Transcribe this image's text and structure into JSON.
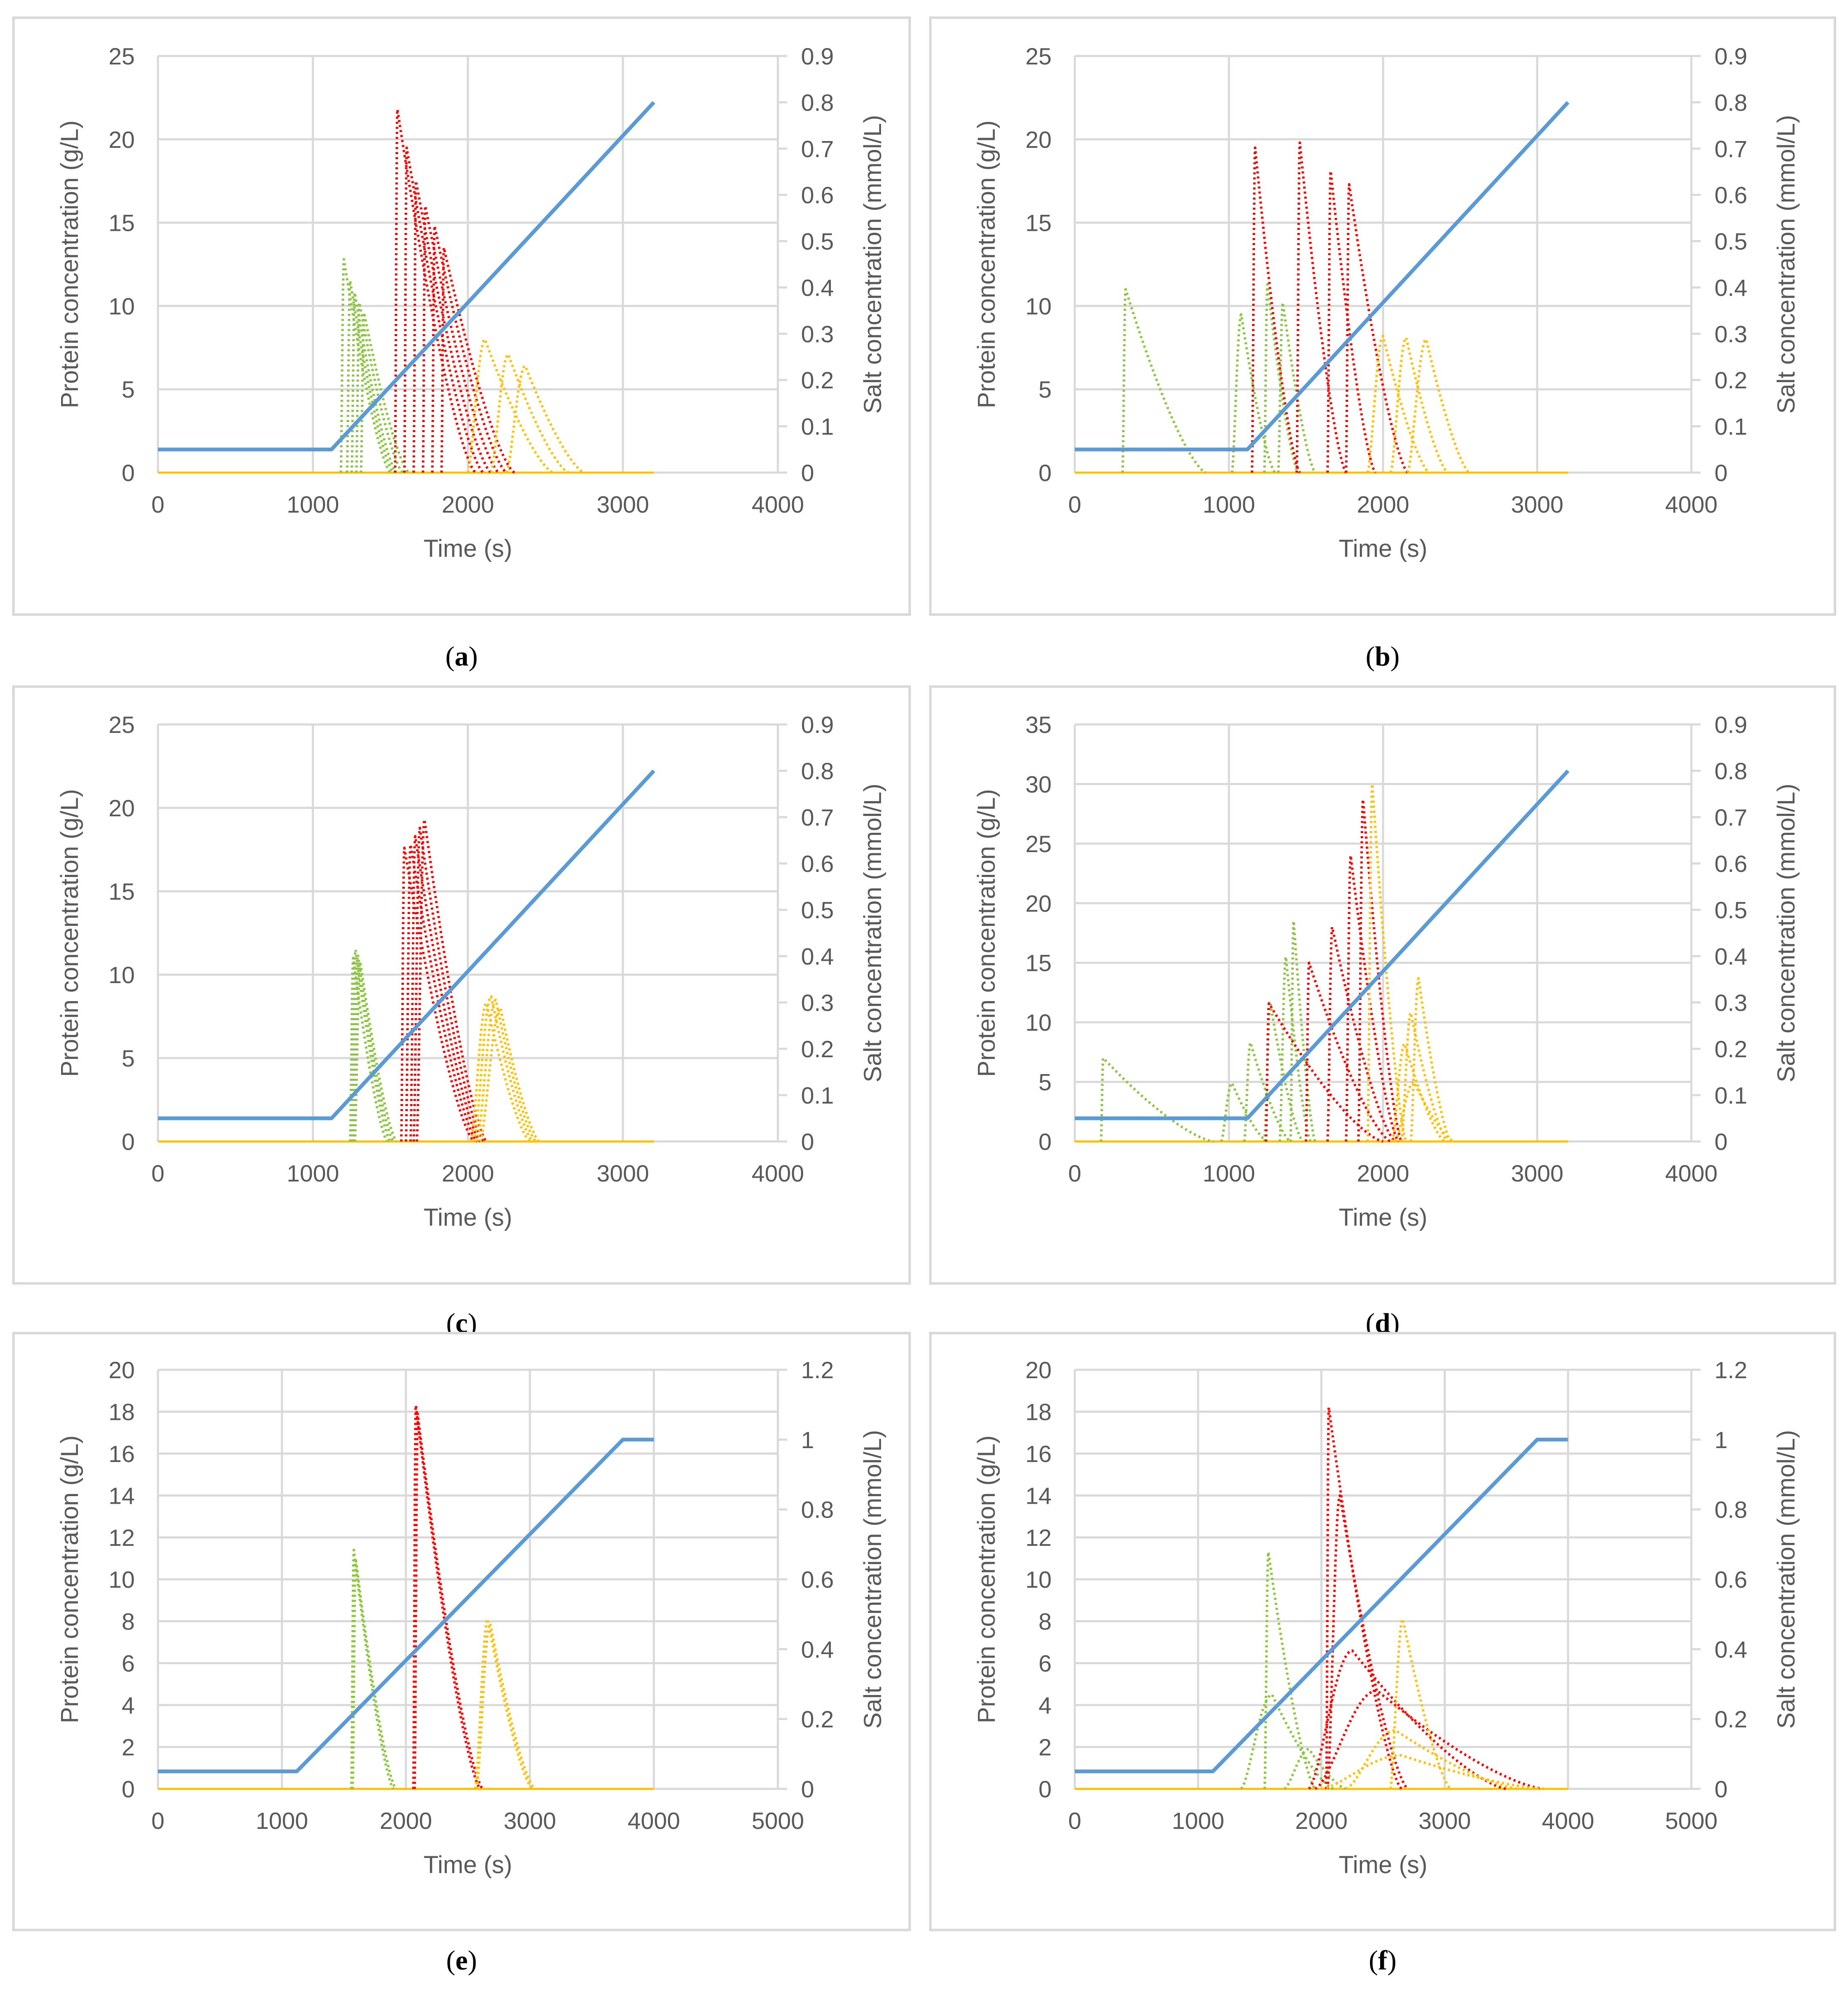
{
  "figure": {
    "panel_labels": [
      "a",
      "b",
      "c",
      "d",
      "e",
      "f"
    ],
    "colors": {
      "salt": "#5b9bd5",
      "green": "#8cc63f",
      "red": "#ff0000",
      "yellow": "#ffc000",
      "grid": "#d9d9d9",
      "frame": "#d9d9d9",
      "axis_text": "#595959"
    },
    "x_label": "Time (s)",
    "y_left_label": "Protein concentration (g/L)",
    "y_right_label": "Salt concentration (mmol/L)"
  },
  "chart_data": [
    {
      "id": "a",
      "type": "line",
      "title": "",
      "xlabel": "Time (s)",
      "ylabel": "Protein concentration (g/L)",
      "y2label": "Salt concentration (mmol/L)",
      "xlim": [
        0,
        4000
      ],
      "x_ticks": [
        0,
        1000,
        2000,
        3000,
        4000
      ],
      "ylim": [
        0,
        25
      ],
      "y_ticks": [
        0,
        5,
        10,
        15,
        20,
        25
      ],
      "y2lim": [
        0,
        0.9
      ],
      "y2_ticks": [
        0,
        0.1,
        0.2,
        0.3,
        0.4,
        0.5,
        0.6,
        0.7,
        0.8,
        0.9
      ],
      "salt": {
        "name": "Salt",
        "axis": "right",
        "x": [
          0,
          1120,
          3200
        ],
        "values": [
          0.05,
          0.05,
          0.8
        ]
      },
      "peaks": [
        {
          "group": "green",
          "start": 1180,
          "apex": 1200,
          "height": 12.8,
          "end": 1500
        },
        {
          "group": "green",
          "start": 1220,
          "apex": 1240,
          "height": 11.5,
          "end": 1520
        },
        {
          "group": "green",
          "start": 1250,
          "apex": 1270,
          "height": 10.8,
          "end": 1540
        },
        {
          "group": "green",
          "start": 1280,
          "apex": 1300,
          "height": 10.2,
          "end": 1580
        },
        {
          "group": "green",
          "start": 1310,
          "apex": 1330,
          "height": 9.6,
          "end": 1620
        },
        {
          "group": "red",
          "start": 1530,
          "apex": 1545,
          "height": 21.8,
          "end": 2050
        },
        {
          "group": "red",
          "start": 1590,
          "apex": 1605,
          "height": 19.5,
          "end": 2100
        },
        {
          "group": "red",
          "start": 1650,
          "apex": 1665,
          "height": 17.5,
          "end": 2150
        },
        {
          "group": "red",
          "start": 1710,
          "apex": 1725,
          "height": 16.0,
          "end": 2200
        },
        {
          "group": "red",
          "start": 1770,
          "apex": 1785,
          "height": 14.8,
          "end": 2250
        },
        {
          "group": "red",
          "start": 1830,
          "apex": 1845,
          "height": 13.5,
          "end": 2300
        },
        {
          "group": "yellow",
          "start": 2000,
          "apex": 2110,
          "height": 8.0,
          "end": 2550
        },
        {
          "group": "yellow",
          "start": 2150,
          "apex": 2260,
          "height": 7.1,
          "end": 2650
        },
        {
          "group": "yellow",
          "start": 2250,
          "apex": 2370,
          "height": 6.4,
          "end": 2750
        }
      ]
    },
    {
      "id": "b",
      "type": "line",
      "title": "",
      "xlabel": "Time (s)",
      "ylabel": "Protein concentration (g/L)",
      "y2label": "Salt concentration (mmol/L)",
      "xlim": [
        0,
        4000
      ],
      "x_ticks": [
        0,
        1000,
        2000,
        3000,
        4000
      ],
      "ylim": [
        0,
        25
      ],
      "y_ticks": [
        0,
        5,
        10,
        15,
        20,
        25
      ],
      "y2lim": [
        0,
        0.9
      ],
      "y2_ticks": [
        0,
        0.1,
        0.2,
        0.3,
        0.4,
        0.5,
        0.6,
        0.7,
        0.8,
        0.9
      ],
      "salt": {
        "name": "Salt",
        "axis": "right",
        "x": [
          0,
          1120,
          3200
        ],
        "values": [
          0.05,
          0.05,
          0.8
        ]
      },
      "peaks": [
        {
          "group": "green",
          "start": 310,
          "apex": 330,
          "height": 11.0,
          "end": 850
        },
        {
          "group": "green",
          "start": 1020,
          "apex": 1080,
          "height": 9.5,
          "end": 1300
        },
        {
          "group": "green",
          "start": 1230,
          "apex": 1250,
          "height": 11.3,
          "end": 1450
        },
        {
          "group": "green",
          "start": 1320,
          "apex": 1350,
          "height": 10.2,
          "end": 1560
        },
        {
          "group": "red",
          "start": 1150,
          "apex": 1170,
          "height": 19.5,
          "end": 1460
        },
        {
          "group": "red",
          "start": 1440,
          "apex": 1460,
          "height": 19.8,
          "end": 1760
        },
        {
          "group": "red",
          "start": 1640,
          "apex": 1660,
          "height": 18.1,
          "end": 1950
        },
        {
          "group": "red",
          "start": 1760,
          "apex": 1780,
          "height": 17.3,
          "end": 2160
        },
        {
          "group": "yellow",
          "start": 1900,
          "apex": 2000,
          "height": 8.2,
          "end": 2300
        },
        {
          "group": "yellow",
          "start": 2050,
          "apex": 2150,
          "height": 8.1,
          "end": 2420
        },
        {
          "group": "yellow",
          "start": 2160,
          "apex": 2280,
          "height": 8.0,
          "end": 2560
        }
      ]
    },
    {
      "id": "c",
      "type": "line",
      "title": "",
      "xlabel": "Time (s)",
      "ylabel": "Protein concentration (g/L)",
      "y2label": "Salt concentration (mmol/L)",
      "xlim": [
        0,
        4000
      ],
      "x_ticks": [
        0,
        1000,
        2000,
        3000,
        4000
      ],
      "ylim": [
        0,
        25
      ],
      "y_ticks": [
        0,
        5,
        10,
        15,
        20,
        25
      ],
      "y2lim": [
        0,
        0.9
      ],
      "y2_ticks": [
        0,
        0.1,
        0.2,
        0.3,
        0.4,
        0.5,
        0.6,
        0.7,
        0.8,
        0.9
      ],
      "salt": {
        "name": "Salt",
        "axis": "right",
        "x": [
          0,
          1120,
          3200
        ],
        "values": [
          0.05,
          0.05,
          0.8
        ]
      },
      "peaks": [
        {
          "group": "green",
          "start": 1240,
          "apex": 1260,
          "height": 11.0,
          "end": 1480
        },
        {
          "group": "green",
          "start": 1250,
          "apex": 1275,
          "height": 11.5,
          "end": 1500
        },
        {
          "group": "green",
          "start": 1260,
          "apex": 1290,
          "height": 11.2,
          "end": 1520
        },
        {
          "group": "green",
          "start": 1270,
          "apex": 1305,
          "height": 10.8,
          "end": 1540
        },
        {
          "group": "red",
          "start": 1570,
          "apex": 1590,
          "height": 17.6,
          "end": 2040
        },
        {
          "group": "red",
          "start": 1600,
          "apex": 1630,
          "height": 17.8,
          "end": 2060
        },
        {
          "group": "red",
          "start": 1630,
          "apex": 1660,
          "height": 18.3,
          "end": 2080
        },
        {
          "group": "red",
          "start": 1650,
          "apex": 1690,
          "height": 18.8,
          "end": 2100
        },
        {
          "group": "red",
          "start": 1670,
          "apex": 1720,
          "height": 19.3,
          "end": 2120
        },
        {
          "group": "yellow",
          "start": 2020,
          "apex": 2120,
          "height": 8.3,
          "end": 2400
        },
        {
          "group": "yellow",
          "start": 2040,
          "apex": 2150,
          "height": 8.7,
          "end": 2420
        },
        {
          "group": "yellow",
          "start": 2060,
          "apex": 2180,
          "height": 8.5,
          "end": 2440
        },
        {
          "group": "yellow",
          "start": 2080,
          "apex": 2210,
          "height": 8.0,
          "end": 2460
        }
      ]
    },
    {
      "id": "d",
      "type": "line",
      "title": "",
      "xlabel": "Time (s)",
      "ylabel": "Protein concentration (g/L)",
      "y2label": "Salt concentration (mmol/L)",
      "xlim": [
        0,
        4000
      ],
      "x_ticks": [
        0,
        1000,
        2000,
        3000,
        4000
      ],
      "ylim": [
        0,
        35
      ],
      "y_ticks": [
        0,
        5,
        10,
        15,
        20,
        25,
        30,
        35
      ],
      "y2lim": [
        0,
        0.9
      ],
      "y2_ticks": [
        0,
        0.1,
        0.2,
        0.3,
        0.4,
        0.5,
        0.6,
        0.7,
        0.8,
        0.9
      ],
      "salt": {
        "name": "Salt",
        "axis": "right",
        "x": [
          0,
          1120,
          3200
        ],
        "values": [
          0.05,
          0.05,
          0.8
        ]
      },
      "peaks": [
        {
          "group": "green",
          "start": 170,
          "apex": 185,
          "height": 7.0,
          "end": 900
        },
        {
          "group": "green",
          "start": 950,
          "apex": 1020,
          "height": 4.9,
          "end": 1250
        },
        {
          "group": "green",
          "start": 1100,
          "apex": 1140,
          "height": 8.3,
          "end": 1400
        },
        {
          "group": "green",
          "start": 1230,
          "apex": 1270,
          "height": 11.5,
          "end": 1480
        },
        {
          "group": "green",
          "start": 1330,
          "apex": 1370,
          "height": 15.5,
          "end": 1530
        },
        {
          "group": "green",
          "start": 1400,
          "apex": 1420,
          "height": 18.5,
          "end": 1560
        },
        {
          "group": "red",
          "start": 1240,
          "apex": 1260,
          "height": 11.6,
          "end": 2000
        },
        {
          "group": "red",
          "start": 1500,
          "apex": 1520,
          "height": 15.0,
          "end": 2050
        },
        {
          "group": "red",
          "start": 1640,
          "apex": 1670,
          "height": 18.0,
          "end": 2080
        },
        {
          "group": "red",
          "start": 1760,
          "apex": 1790,
          "height": 24.0,
          "end": 2100
        },
        {
          "group": "red",
          "start": 1840,
          "apex": 1870,
          "height": 28.7,
          "end": 2120
        },
        {
          "group": "yellow",
          "start": 1900,
          "apex": 1930,
          "height": 30.0,
          "end": 2150
        },
        {
          "group": "yellow",
          "start": 2060,
          "apex": 2140,
          "height": 8.2,
          "end": 2400
        },
        {
          "group": "yellow",
          "start": 2120,
          "apex": 2180,
          "height": 10.8,
          "end": 2420
        },
        {
          "group": "yellow",
          "start": 2180,
          "apex": 2230,
          "height": 13.7,
          "end": 2440
        },
        {
          "group": "yellow",
          "start": 2080,
          "apex": 2200,
          "height": 5.0,
          "end": 2460
        }
      ]
    },
    {
      "id": "e",
      "type": "line",
      "title": "",
      "xlabel": "Time (s)",
      "ylabel": "Protein concentration (g/L)",
      "y2label": "Salt concentration (mmol/L)",
      "xlim": [
        0,
        5000
      ],
      "x_ticks": [
        0,
        1000,
        2000,
        3000,
        4000,
        5000
      ],
      "ylim": [
        0,
        20
      ],
      "y_ticks": [
        0,
        2,
        4,
        6,
        8,
        10,
        12,
        14,
        16,
        18,
        20
      ],
      "y2lim": [
        0,
        1.2
      ],
      "y2_ticks": [
        0,
        0.2,
        0.4,
        0.6,
        0.8,
        1,
        1.2
      ],
      "salt": {
        "name": "Salt",
        "axis": "right",
        "x": [
          0,
          1120,
          3750,
          4000
        ],
        "values": [
          0.05,
          0.05,
          1.0,
          1.0
        ]
      },
      "peaks": [
        {
          "group": "green",
          "start": 1560,
          "apex": 1580,
          "height": 11.4,
          "end": 1900
        },
        {
          "group": "green",
          "start": 1570,
          "apex": 1595,
          "height": 11.0,
          "end": 1920
        },
        {
          "group": "red",
          "start": 2060,
          "apex": 2080,
          "height": 18.3,
          "end": 2600
        },
        {
          "group": "red",
          "start": 2070,
          "apex": 2095,
          "height": 17.9,
          "end": 2620
        },
        {
          "group": "yellow",
          "start": 2560,
          "apex": 2660,
          "height": 8.1,
          "end": 3020
        },
        {
          "group": "yellow",
          "start": 2570,
          "apex": 2680,
          "height": 7.9,
          "end": 3040
        }
      ]
    },
    {
      "id": "f",
      "type": "line",
      "title": "",
      "xlabel": "Time (s)",
      "ylabel": "Protein concentration (g/L)",
      "y2label": "Salt concentration (mmol/L)",
      "xlim": [
        0,
        5000
      ],
      "x_ticks": [
        0,
        1000,
        2000,
        3000,
        4000,
        5000
      ],
      "ylim": [
        0,
        20
      ],
      "y_ticks": [
        0,
        2,
        4,
        6,
        8,
        10,
        12,
        14,
        16,
        18,
        20
      ],
      "y2lim": [
        0,
        1.2
      ],
      "y2_ticks": [
        0,
        0.2,
        0.4,
        0.6,
        0.8,
        1,
        1.2
      ],
      "salt": {
        "name": "Salt",
        "axis": "right",
        "x": [
          0,
          1120,
          3750,
          4000
        ],
        "values": [
          0.05,
          0.05,
          1.0,
          1.0
        ]
      },
      "peaks": [
        {
          "group": "green",
          "start": 1540,
          "apex": 1570,
          "height": 11.3,
          "end": 1950
        },
        {
          "group": "green",
          "start": 1350,
          "apex": 1600,
          "height": 4.5,
          "end": 2100
        },
        {
          "group": "green",
          "start": 1700,
          "apex": 1900,
          "height": 1.9,
          "end": 2200
        },
        {
          "group": "red",
          "start": 2040,
          "apex": 2060,
          "height": 18.2,
          "end": 2650
        },
        {
          "group": "red",
          "start": 2050,
          "apex": 2150,
          "height": 14.0,
          "end": 2700
        },
        {
          "group": "red",
          "start": 1900,
          "apex": 2250,
          "height": 6.6,
          "end": 3500
        },
        {
          "group": "red",
          "start": 1950,
          "apex": 2450,
          "height": 4.7,
          "end": 3800
        },
        {
          "group": "yellow",
          "start": 2560,
          "apex": 2660,
          "height": 8.1,
          "end": 3050
        },
        {
          "group": "yellow",
          "start": 2200,
          "apex": 2600,
          "height": 2.8,
          "end": 3600
        },
        {
          "group": "yellow",
          "start": 2000,
          "apex": 2650,
          "height": 1.6,
          "end": 3800
        }
      ]
    }
  ]
}
